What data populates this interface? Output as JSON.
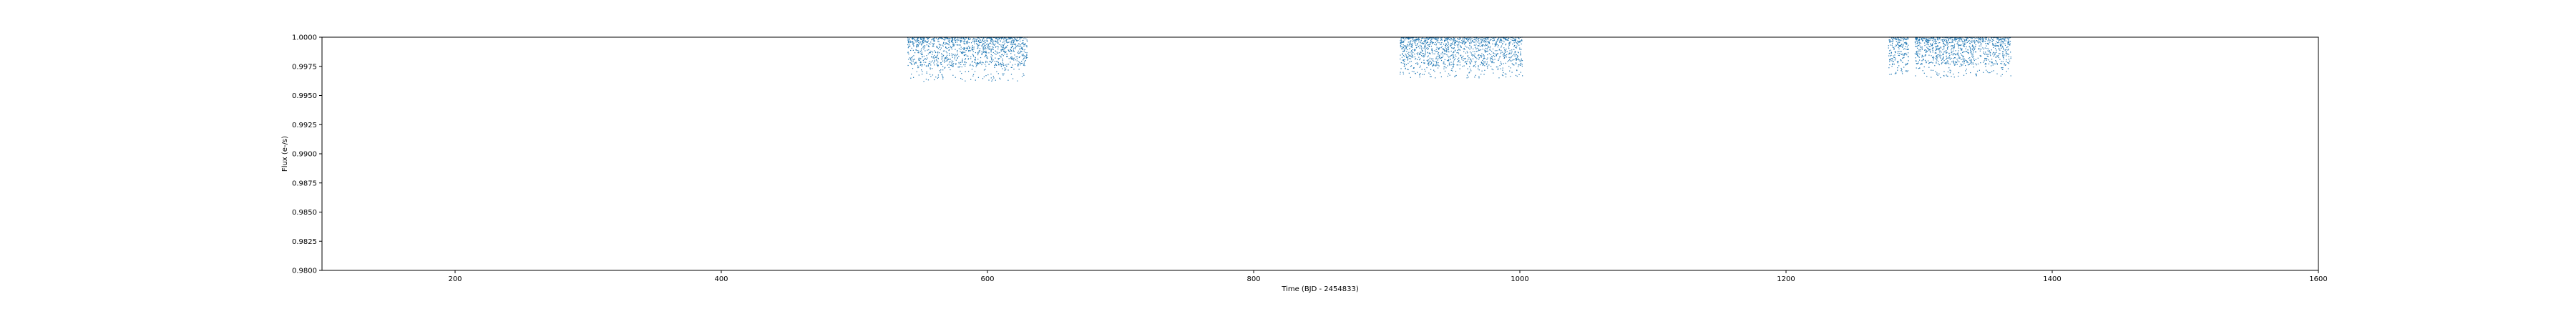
{
  "chart_data": {
    "type": "scatter",
    "title": "",
    "xlabel": "Time (BJD - 2454833)",
    "ylabel": "Flux (e-/s)",
    "xlim": [
      100,
      1600
    ],
    "ylim": [
      0.98,
      1.0
    ],
    "xticks": [
      200,
      400,
      600,
      800,
      1000,
      1200,
      1400,
      1600
    ],
    "xtick_labels": [
      "200",
      "400",
      "600",
      "800",
      "1000",
      "1200",
      "1400",
      "1600"
    ],
    "yticks": [
      0.98,
      0.9825,
      0.985,
      0.9875,
      0.99,
      0.9925,
      0.995,
      0.9975,
      1.0
    ],
    "ytick_labels": [
      "0.9800",
      "0.9825",
      "0.9850",
      "0.9875",
      "0.9900",
      "0.9925",
      "0.9950",
      "0.9975",
      "1.0000"
    ],
    "grid": false,
    "legend": "none",
    "marker_color": "#1f77b4",
    "series": [
      {
        "segments": [
          {
            "x_start": 540,
            "x_end": 630,
            "y_max": 1.0,
            "y_typical_min": 0.9975,
            "y_outlier_min": 0.9962
          },
          {
            "x_start": 910,
            "x_end": 1002,
            "y_max": 1.0,
            "y_typical_min": 0.9975,
            "y_outlier_min": 0.9965
          },
          {
            "x_start": 1277,
            "x_end": 1292,
            "y_max": 1.0,
            "y_typical_min": 0.9976,
            "y_outlier_min": 0.9968
          },
          {
            "x_start": 1297,
            "x_end": 1369,
            "y_max": 1.0,
            "y_typical_min": 0.9976,
            "y_outlier_min": 0.9965
          }
        ]
      }
    ]
  }
}
